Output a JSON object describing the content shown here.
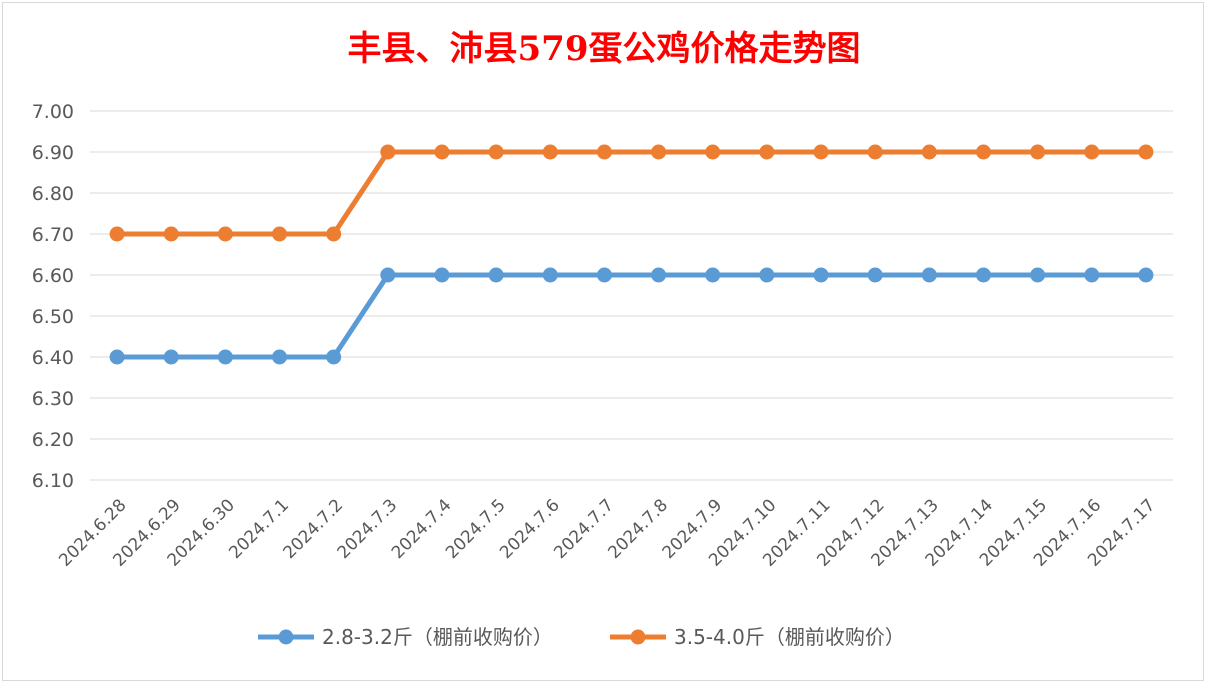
{
  "chart_data": {
    "type": "line",
    "title": "丰县、沛县579蛋公鸡价格走势图",
    "title_color": "#ff0000",
    "categories": [
      "2024.6.28",
      "2024.6.29",
      "2024.6.30",
      "2024.7.1",
      "2024.7.2",
      "2024.7.3",
      "2024.7.4",
      "2024.7.5",
      "2024.7.6",
      "2024.7.7",
      "2024.7.8",
      "2024.7.9",
      "2024.7.10",
      "2024.7.11",
      "2024.7.12",
      "2024.7.13",
      "2024.7.14",
      "2024.7.15",
      "2024.7.16",
      "2024.7.17"
    ],
    "series": [
      {
        "name": "2.8-3.2斤（棚前收购价）",
        "color": "#5b9bd5",
        "values": [
          6.4,
          6.4,
          6.4,
          6.4,
          6.4,
          6.6,
          6.6,
          6.6,
          6.6,
          6.6,
          6.6,
          6.6,
          6.6,
          6.6,
          6.6,
          6.6,
          6.6,
          6.6,
          6.6,
          6.6
        ]
      },
      {
        "name": "3.5-4.0斤（棚前收购价）",
        "color": "#ed7d31",
        "values": [
          6.7,
          6.7,
          6.7,
          6.7,
          6.7,
          6.9,
          6.9,
          6.9,
          6.9,
          6.9,
          6.9,
          6.9,
          6.9,
          6.9,
          6.9,
          6.9,
          6.9,
          6.9,
          6.9,
          6.9
        ]
      }
    ],
    "ylim": [
      6.1,
      7.0
    ],
    "yticks": [
      "6.10",
      "6.20",
      "6.30",
      "6.40",
      "6.50",
      "6.60",
      "6.70",
      "6.80",
      "6.90",
      "7.00"
    ],
    "grid": true,
    "legend": "bottom"
  }
}
